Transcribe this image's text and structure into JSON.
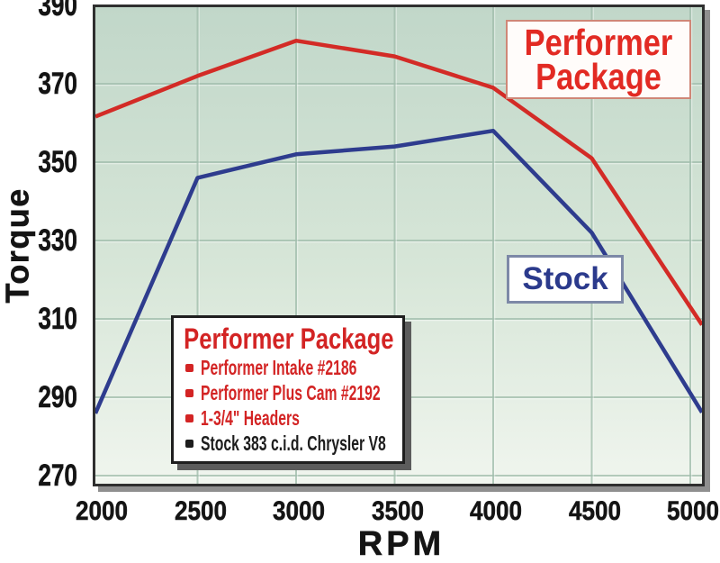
{
  "chart_data": {
    "type": "line",
    "x": [
      2000,
      2500,
      3000,
      3500,
      4000,
      4500,
      5000
    ],
    "series": [
      {
        "name": "Performer Package",
        "color": "#d32b26",
        "values": [
          362,
          372,
          381,
          377,
          369,
          351,
          313
        ]
      },
      {
        "name": "Stock",
        "color": "#2e3c8e",
        "values": [
          288,
          346,
          352,
          354,
          358,
          332,
          291
        ]
      }
    ],
    "title": "",
    "xlabel": "RPM",
    "ylabel": "Torque",
    "xticks": [
      2000,
      2500,
      3000,
      3500,
      4000,
      4500,
      5000
    ],
    "yticks": [
      270,
      290,
      310,
      330,
      350,
      370,
      390
    ],
    "xlim": [
      1982,
      5059
    ],
    "ylim": [
      268,
      390
    ],
    "grid": true,
    "legend_position": "inside lower-left"
  },
  "labels": {
    "performer_line1": "Performer",
    "performer_line2": "Package",
    "stock": "Stock",
    "x_axis": "RPM",
    "y_axis": "Torque"
  },
  "legend": {
    "title": "Performer Package",
    "items": [
      {
        "text": "Performer Intake #2186",
        "color": "#d32424"
      },
      {
        "text": "Performer Plus Cam #2192",
        "color": "#d32424"
      },
      {
        "text": "1-3/4\" Headers",
        "color": "#d32424"
      },
      {
        "text": "Stock 383 c.i.d. Chrysler V8",
        "color": "#1d1d1d"
      }
    ]
  },
  "colors": {
    "plot_bg_top": "#c1d7c9",
    "plot_bg_bottom": "#f0f5ee",
    "gridline": "#a3bfae",
    "performer_red": "#d32b26",
    "stock_blue": "#2e3c8e",
    "plot_border": "#2f2f2f",
    "shadow": "#8f8f8f"
  }
}
